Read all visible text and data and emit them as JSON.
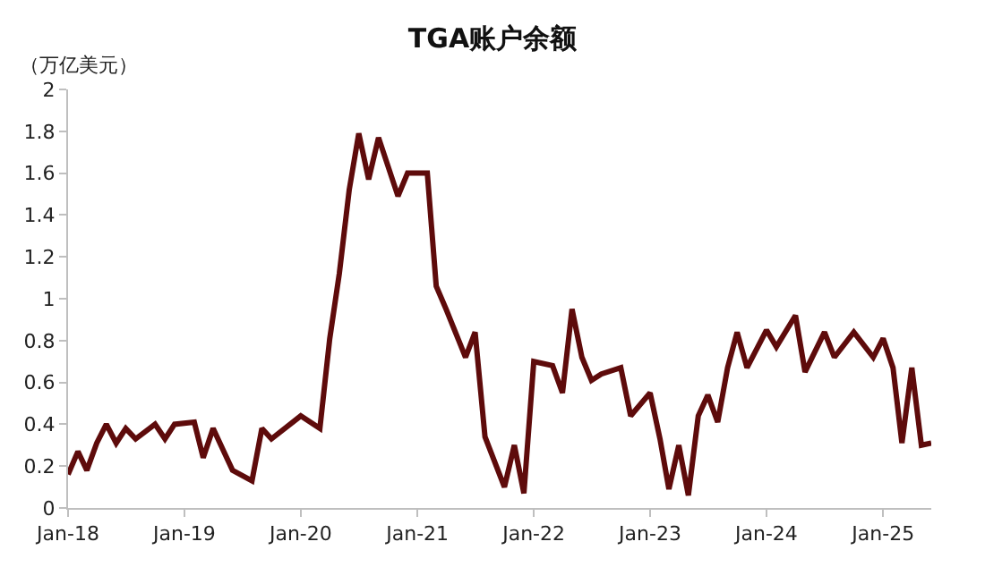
{
  "chart_data": {
    "type": "line",
    "title": "TGA账户余额",
    "ylabel": "（万亿美元）",
    "x": [
      "2018-01",
      "2018-02",
      "2018-03",
      "2018-04",
      "2018-05",
      "2018-06",
      "2018-07",
      "2018-08",
      "2018-10",
      "2018-11",
      "2018-12",
      "2019-02",
      "2019-03",
      "2019-04",
      "2019-06",
      "2019-08",
      "2019-09",
      "2019-10",
      "2020-01",
      "2020-03",
      "2020-04",
      "2020-05",
      "2020-06",
      "2020-07",
      "2020-08",
      "2020-09",
      "2020-11",
      "2020-12",
      "2021-02",
      "2021-03",
      "2021-04",
      "2021-06",
      "2021-07",
      "2021-08",
      "2021-10",
      "2021-11",
      "2021-12",
      "2022-01",
      "2022-03",
      "2022-04",
      "2022-05",
      "2022-06",
      "2022-07",
      "2022-08",
      "2022-10",
      "2022-11",
      "2023-01",
      "2023-02",
      "2023-03",
      "2023-04",
      "2023-05",
      "2023-06",
      "2023-07",
      "2023-08",
      "2023-09",
      "2023-10",
      "2023-11",
      "2024-01",
      "2024-02",
      "2024-04",
      "2024-05",
      "2024-07",
      "2024-08",
      "2024-10",
      "2024-12",
      "2025-01",
      "2025-02",
      "2025-03",
      "2025-04",
      "2025-05",
      "2025-06"
    ],
    "series": [
      {
        "color": "#5e0b0b",
        "values": [
          0.16,
          0.27,
          0.18,
          0.31,
          0.4,
          0.31,
          0.38,
          0.33,
          0.4,
          0.33,
          0.4,
          0.41,
          0.24,
          0.38,
          0.18,
          0.13,
          0.38,
          0.33,
          0.44,
          0.38,
          0.81,
          1.12,
          1.52,
          1.79,
          1.57,
          1.77,
          1.49,
          1.6,
          1.6,
          1.06,
          0.95,
          0.72,
          0.84,
          0.34,
          0.1,
          0.3,
          0.07,
          0.7,
          0.68,
          0.55,
          0.95,
          0.72,
          0.61,
          0.64,
          0.67,
          0.44,
          0.55,
          0.33,
          0.09,
          0.3,
          0.06,
          0.44,
          0.54,
          0.41,
          0.67,
          0.84,
          0.67,
          0.85,
          0.77,
          0.92,
          0.65,
          0.84,
          0.72,
          0.84,
          0.72,
          0.81,
          0.67,
          0.31,
          0.67,
          0.3,
          0.31
        ]
      }
    ],
    "xlim": [
      "2018-01",
      "2025-06"
    ],
    "xticks": [
      {
        "value": "2018-01",
        "label": "Jan-18"
      },
      {
        "value": "2019-01",
        "label": "Jan-19"
      },
      {
        "value": "2020-01",
        "label": "Jan-20"
      },
      {
        "value": "2021-01",
        "label": "Jan-21"
      },
      {
        "value": "2022-01",
        "label": "Jan-22"
      },
      {
        "value": "2023-01",
        "label": "Jan-23"
      },
      {
        "value": "2024-01",
        "label": "Jan-24"
      },
      {
        "value": "2025-01",
        "label": "Jan-25"
      }
    ],
    "ylim": [
      0,
      2
    ],
    "yticks": [
      0,
      0.2,
      0.4,
      0.6,
      0.8,
      1,
      1.2,
      1.4,
      1.6,
      1.8,
      2
    ],
    "line_style": "solid",
    "marker": "none"
  }
}
